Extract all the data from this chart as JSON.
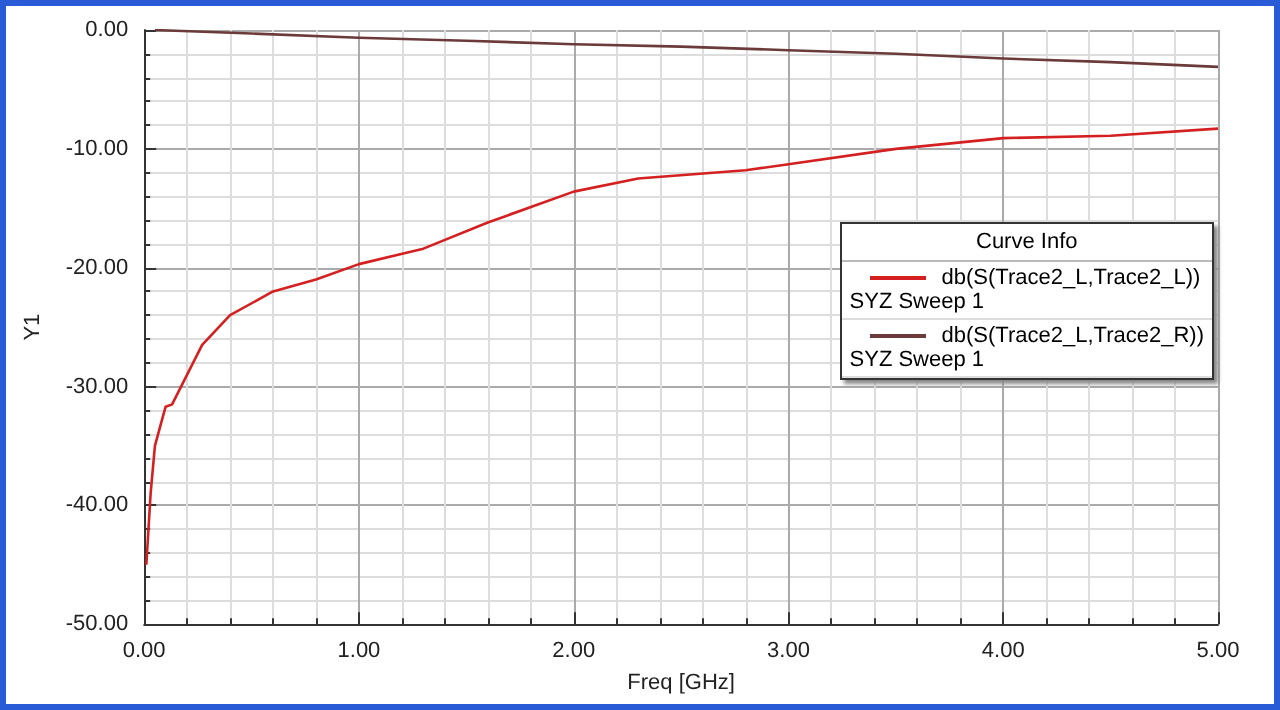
{
  "chart_data": {
    "type": "line",
    "xlabel": "Freq [GHz]",
    "ylabel": "Y1",
    "legend_title": "Curve Info",
    "xlim": [
      0,
      5
    ],
    "xticks": [
      {
        "value": 0,
        "label": "0.00"
      },
      {
        "value": 1,
        "label": "1.00"
      },
      {
        "value": 2,
        "label": "2.00"
      },
      {
        "value": 3,
        "label": "3.00"
      },
      {
        "value": 4,
        "label": "4.00"
      },
      {
        "value": 5,
        "label": "5.00"
      }
    ],
    "ylim": [
      -50,
      0
    ],
    "yticks": [
      {
        "value": -50,
        "label": "-50.00"
      },
      {
        "value": -40,
        "label": "-40.00"
      },
      {
        "value": -30,
        "label": "-30.00"
      },
      {
        "value": -20,
        "label": "-20.00"
      },
      {
        "value": -10,
        "label": "-10.00"
      },
      {
        "value": 0,
        "label": "0.00"
      }
    ],
    "grid": true,
    "legend": "right",
    "marker": "none",
    "line_style": "solid",
    "series": [
      {
        "name": "db(S(Trace2_L,Trace2_L)) SYZ Sweep 1",
        "color": "#d42020",
        "x": [
          0.01,
          0.02,
          0.03,
          0.05,
          0.08,
          0.1,
          0.13,
          0.2,
          0.27,
          0.4,
          0.6,
          0.8,
          1.0,
          1.3,
          1.6,
          2.0,
          2.3,
          2.8,
          3.0,
          3.5,
          4.0,
          4.5,
          5.0
        ],
        "values": [
          -45,
          -42,
          -39,
          -35,
          -33,
          -31.7,
          -31.5,
          -29,
          -26.5,
          -24,
          -22,
          -21,
          -19.7,
          -18.4,
          -16.2,
          -13.6,
          -12.5,
          -11.8,
          -11.3,
          -10,
          -9.1,
          -8.9,
          -8.3
        ]
      },
      {
        "name": "db(S(Trace2_L,Trace2_R)) SYZ Sweep 1",
        "color": "#6b3a3a",
        "x": [
          0.05,
          0.5,
          1,
          1.5,
          2,
          2.5,
          3,
          3.5,
          4,
          4.5,
          5
        ],
        "values": [
          0,
          -0.3,
          -0.65,
          -0.9,
          -1.2,
          -1.4,
          -1.7,
          -2.0,
          -2.4,
          -2.7,
          -3.1
        ]
      }
    ]
  }
}
